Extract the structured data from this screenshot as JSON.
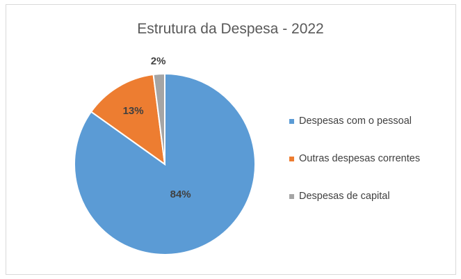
{
  "chart_data": {
    "type": "pie",
    "title": "Estrutura da Despesa - 2022",
    "categories": [
      "Despesas com o pessoal",
      "Outras despesas correntes",
      "Despesas de capital"
    ],
    "values": [
      84,
      13,
      2
    ],
    "data_labels": [
      "84%",
      "13%",
      "2%"
    ],
    "colors": [
      "#5b9bd5",
      "#ed7d31",
      "#a5a5a5"
    ],
    "start_angle": "12 o'clock",
    "direction": "clockwise",
    "legend_position": "right"
  }
}
